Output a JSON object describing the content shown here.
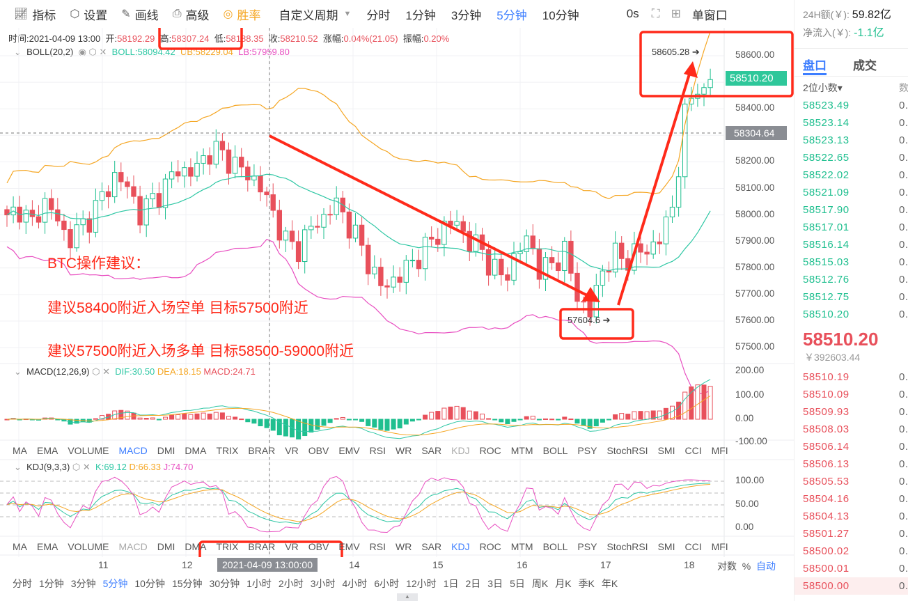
{
  "toolbar": {
    "items": [
      {
        "icon": "chart-line-icon",
        "label": "指标"
      },
      {
        "icon": "hexagon-gear-icon",
        "label": "设置"
      },
      {
        "icon": "pencil-icon",
        "label": "画线"
      },
      {
        "icon": "printer-icon",
        "label": "高级"
      },
      {
        "icon": "gauge-icon",
        "label": "胜率"
      }
    ],
    "custom_period": "自定义周期",
    "periods": [
      "分时",
      "1分钟",
      "3分钟",
      "5分钟",
      "10分钟"
    ],
    "active_period": "5分钟",
    "refresh": "0s",
    "window_mode": "单窗口"
  },
  "info": {
    "time_label": "时间:",
    "time": "2021-04-09 13:00",
    "open_label": "开:",
    "open": "58192.29",
    "high_label": "高:",
    "high": "58307.24",
    "low_label": "低:",
    "low": "58188.35",
    "close_label": "收:",
    "close": "58210.52",
    "change_label": "涨幅:",
    "change": "0.04%(21.05)",
    "amp_label": "振幅:",
    "amp": "0.20%"
  },
  "boll": {
    "name": "BOLL(20,2)",
    "mid": "BOLL:58094.42",
    "ub": "UB:58229.04",
    "lb": "LB:57959.80"
  },
  "price_axis": [
    "58600.00",
    "58400.00",
    "58300.00",
    "58200.00",
    "58100.00",
    "58000.00",
    "57900.00",
    "57800.00",
    "57700.00",
    "57600.00",
    "57500.00"
  ],
  "price_axis_values": [
    58600,
    58500,
    58400,
    58300,
    58200,
    58100,
    58000,
    57900,
    57800,
    57700,
    57600,
    57500
  ],
  "price_axis_labels": [
    "58600.00",
    "58500.00",
    "58400.00",
    "58300.00",
    "58200.00",
    "58100.00",
    "58000.00",
    "57900.00",
    "57800.00",
    "57700.00",
    "57600.00",
    "57500.00"
  ],
  "last_price_tag": "58510.20",
  "crosshair_tag": "58304.64",
  "max_marker": "58605.28 ➔",
  "min_marker": "57604.6 ➔",
  "annotations": {
    "title": "BTC操作建议：",
    "line1": "建议58400附近入场空单 目标57500附近",
    "line2": "建议57500附近入场多单 目标58500-59000附近"
  },
  "closes": [
    57980,
    58030,
    57960,
    58050,
    58000,
    57900,
    57950,
    58000,
    58080,
    58150,
    58100,
    58000,
    58060,
    58100,
    58180,
    58150,
    58200,
    58250,
    58220,
    58180,
    58150,
    58100,
    58000,
    57900,
    57870,
    57950,
    57980,
    58050,
    57980,
    57900,
    57800,
    57720,
    57760,
    57800,
    57850,
    57900,
    57950,
    57980,
    57900,
    57880,
    57800,
    57760,
    57850,
    57920,
    57780,
    57820,
    57860,
    57700,
    57620,
    57780,
    57850,
    57830,
    57860,
    57870,
    57920,
    58050,
    58400,
    58500,
    58510
  ],
  "macd": {
    "name": "MACD(12,26,9)",
    "dif": "DIF:30.50",
    "dea": "DEA:18.15",
    "macd": "MACD:24.71",
    "axis": [
      "200.00",
      "100.00",
      "0.00",
      "-100.00"
    ]
  },
  "indicator_tabs": [
    "MA",
    "EMA",
    "VOLUME",
    "MACD",
    "DMI",
    "DMA",
    "TRIX",
    "BRAR",
    "VR",
    "OBV",
    "EMV",
    "RSI",
    "WR",
    "SAR",
    "KDJ",
    "ROC",
    "MTM",
    "BOLL",
    "PSY",
    "StochRSI",
    "SMI",
    "CCI",
    "MFI"
  ],
  "kdj": {
    "name": "KDJ(9,3,3)",
    "k": "K:69.12",
    "d": "D:66.33",
    "j": "J:74.70",
    "axis": [
      "100.00",
      "50.00",
      "0.00"
    ]
  },
  "time_axis": [
    "11",
    "12",
    "14",
    "15",
    "16",
    "17",
    "18"
  ],
  "time_tag": "2021-04-09 13:00:00",
  "axis_opts": [
    "对数",
    "%",
    "自动"
  ],
  "bottom_periods": [
    "分时",
    "1分钟",
    "3分钟",
    "5分钟",
    "10分钟",
    "15分钟",
    "30分钟",
    "1小时",
    "2小时",
    "3小时",
    "4小时",
    "6小时",
    "12小时",
    "1日",
    "2日",
    "3日",
    "5日",
    "周K",
    "月K",
    "季K",
    "年K"
  ],
  "side": {
    "amount_label": "24H额(￥):",
    "amount": "59.82亿",
    "inflow_label": "净流入(￥):",
    "inflow": "-1.1亿",
    "tabs": [
      "盘口",
      "成交"
    ],
    "decimals": "2位小数▾",
    "qty_header": "数",
    "asks": [
      "58523.49",
      "58523.14",
      "58523.13",
      "58522.65",
      "58522.02",
      "58521.09",
      "58517.90",
      "58517.01",
      "58516.14",
      "58515.03",
      "58512.76",
      "58512.75",
      "58510.20"
    ],
    "last": "58510.20",
    "last_cny": "￥392603.44",
    "bids": [
      "58510.19",
      "58510.09",
      "58509.93",
      "58508.03",
      "58506.14",
      "58506.13",
      "58505.53",
      "58504.16",
      "58504.13",
      "58501.27",
      "58500.02",
      "58500.01",
      "58500.00"
    ],
    "qty": "0."
  },
  "colors": {
    "up": "#1fbf8f",
    "down": "#e8505b",
    "accent": "#3d7eff",
    "annotation": "#ff2a1a"
  }
}
